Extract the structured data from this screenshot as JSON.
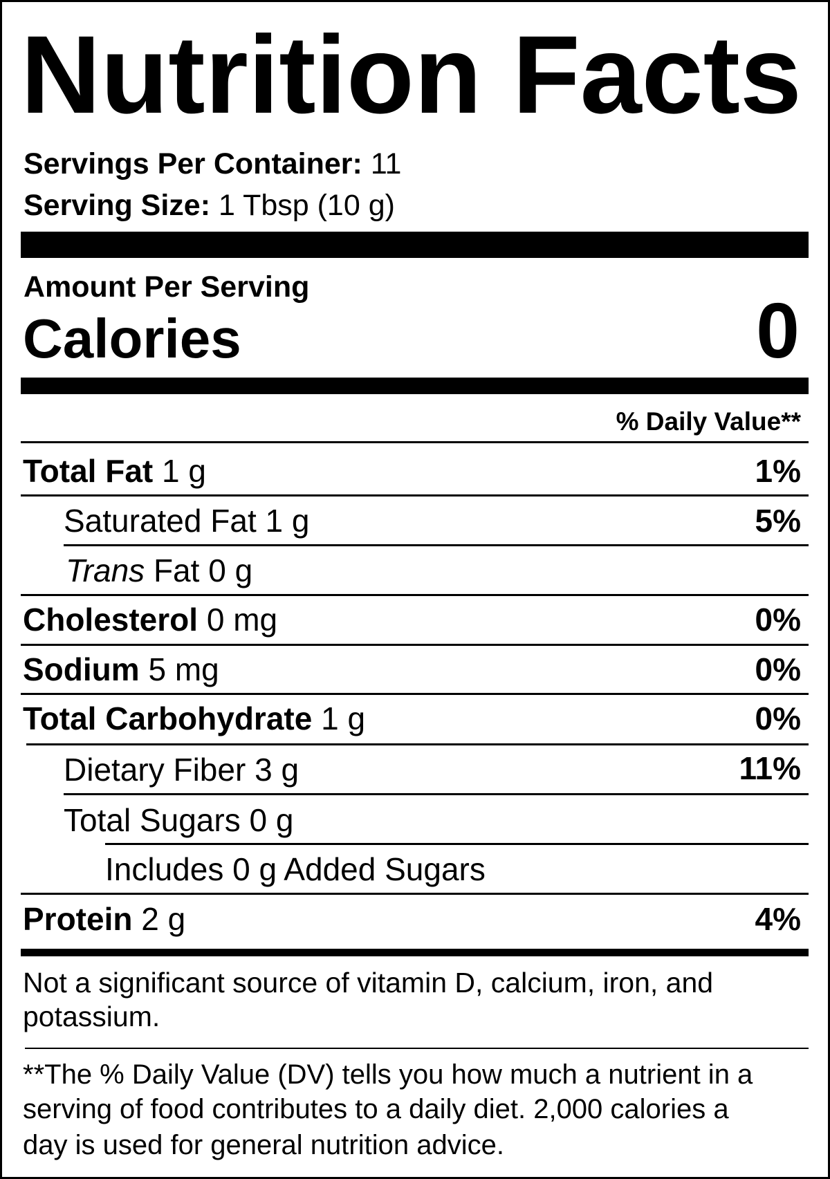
{
  "title": "Nutrition Facts",
  "servings": {
    "label": "Servings Per Container:",
    "value": "11"
  },
  "serving_size": {
    "label": "Serving Size:",
    "value": "1 Tbsp (10 g)"
  },
  "amount_per_serving": "Amount Per Serving",
  "calories": {
    "label": "Calories",
    "value": "0"
  },
  "dv_header": "% Daily Value**",
  "nutrients": [
    {
      "name": "Total Fat",
      "amount": "1 g",
      "dv": "1%"
    },
    {
      "name": "Saturated Fat",
      "amount": "1 g",
      "dv": "5%"
    },
    {
      "name": "Trans",
      "name_rest": "Fat",
      "amount": "0 g"
    },
    {
      "name": "Cholesterol",
      "amount": "0 mg",
      "dv": "0%"
    },
    {
      "name": "Sodium",
      "amount": "5 mg",
      "dv": "0%"
    },
    {
      "name": "Total Carbohydrate",
      "amount": "1 g",
      "dv": "0%"
    },
    {
      "name": "Dietary Fiber",
      "amount": "3 g",
      "dv": "11%"
    },
    {
      "name": "Total Sugars",
      "amount": "0 g"
    },
    {
      "name": "Includes 0 g Added Sugars"
    },
    {
      "name": "Protein",
      "amount": "2 g",
      "dv": "4%"
    }
  ],
  "not_significant": [
    "Not a significant source of vitamin D, calcium, iron, and",
    "potassium."
  ],
  "footnote": [
    "**The % Daily Value (DV) tells you how much a nutrient in a",
    "serving of food contributes to a daily diet. 2,000 calories a",
    "day is used for general nutrition advice."
  ]
}
